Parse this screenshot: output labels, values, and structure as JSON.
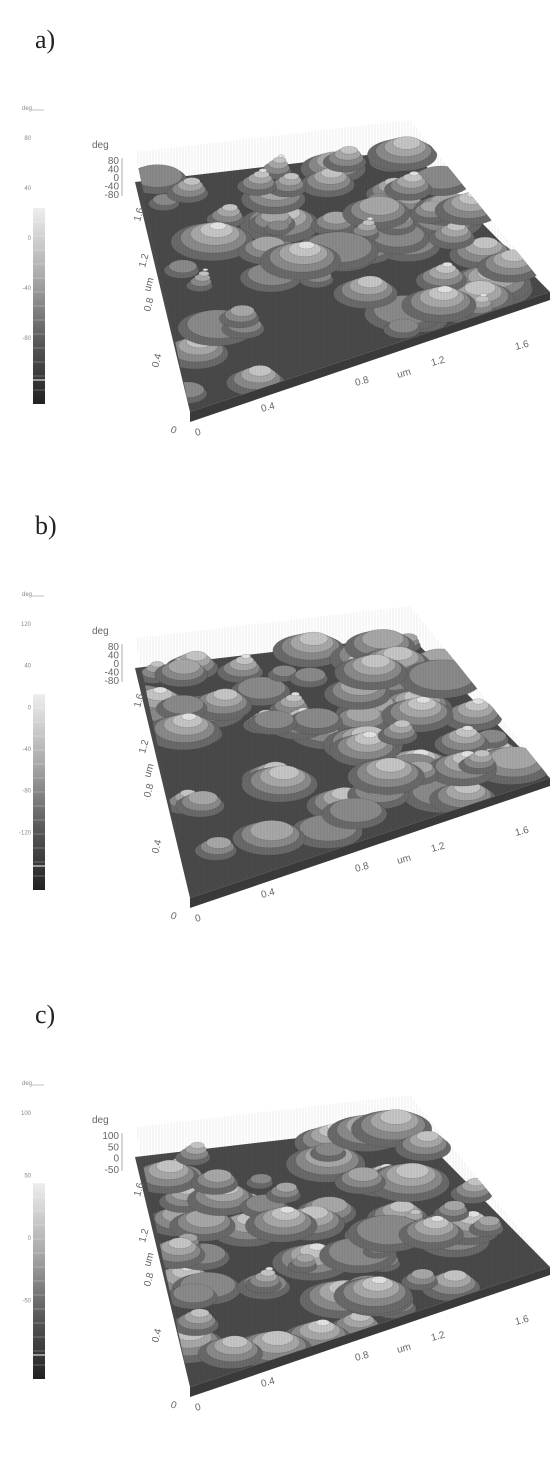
{
  "panels": [
    {
      "label": "a)",
      "colorbar": {
        "unit": "deg",
        "labels": [
          "80",
          "40",
          "0",
          "-40",
          "-80"
        ]
      },
      "z_axis": {
        "unit": "deg",
        "ticks": [
          "80",
          "40",
          "0",
          "-40",
          "-80"
        ]
      },
      "y_axis": {
        "unit": "um",
        "ticks": [
          "0.4",
          "0.8",
          "1.2",
          "1.6"
        ]
      },
      "x_axis": {
        "unit": "um",
        "origin": "0",
        "ticks": [
          "0",
          "0.4",
          "0.8",
          "1.2",
          "1.6"
        ]
      }
    },
    {
      "label": "b)",
      "colorbar": {
        "unit": "deg",
        "labels": [
          "120",
          "40",
          "0",
          "-40",
          "-80",
          "-120"
        ]
      },
      "z_axis": {
        "unit": "deg",
        "ticks": [
          "80",
          "40",
          "0",
          "-40",
          "-80"
        ]
      },
      "y_axis": {
        "unit": "um",
        "ticks": [
          "0.4",
          "0.8",
          "1.2",
          "1.6"
        ]
      },
      "x_axis": {
        "unit": "um",
        "origin": "0",
        "ticks": [
          "0",
          "0.4",
          "0.8",
          "1.2",
          "1.6"
        ]
      }
    },
    {
      "label": "c)",
      "colorbar": {
        "unit": "deg",
        "labels": [
          "100",
          "50",
          "0",
          "-50"
        ]
      },
      "z_axis": {
        "unit": "deg",
        "ticks": [
          "100",
          "50",
          "0",
          "-50"
        ]
      },
      "y_axis": {
        "unit": "um",
        "ticks": [
          "0.4",
          "0.8",
          "1.2",
          "1.6"
        ]
      },
      "x_axis": {
        "unit": "um",
        "origin": "0",
        "ticks": [
          "0",
          "0.4",
          "0.8",
          "1.2",
          "1.6"
        ]
      }
    }
  ]
}
